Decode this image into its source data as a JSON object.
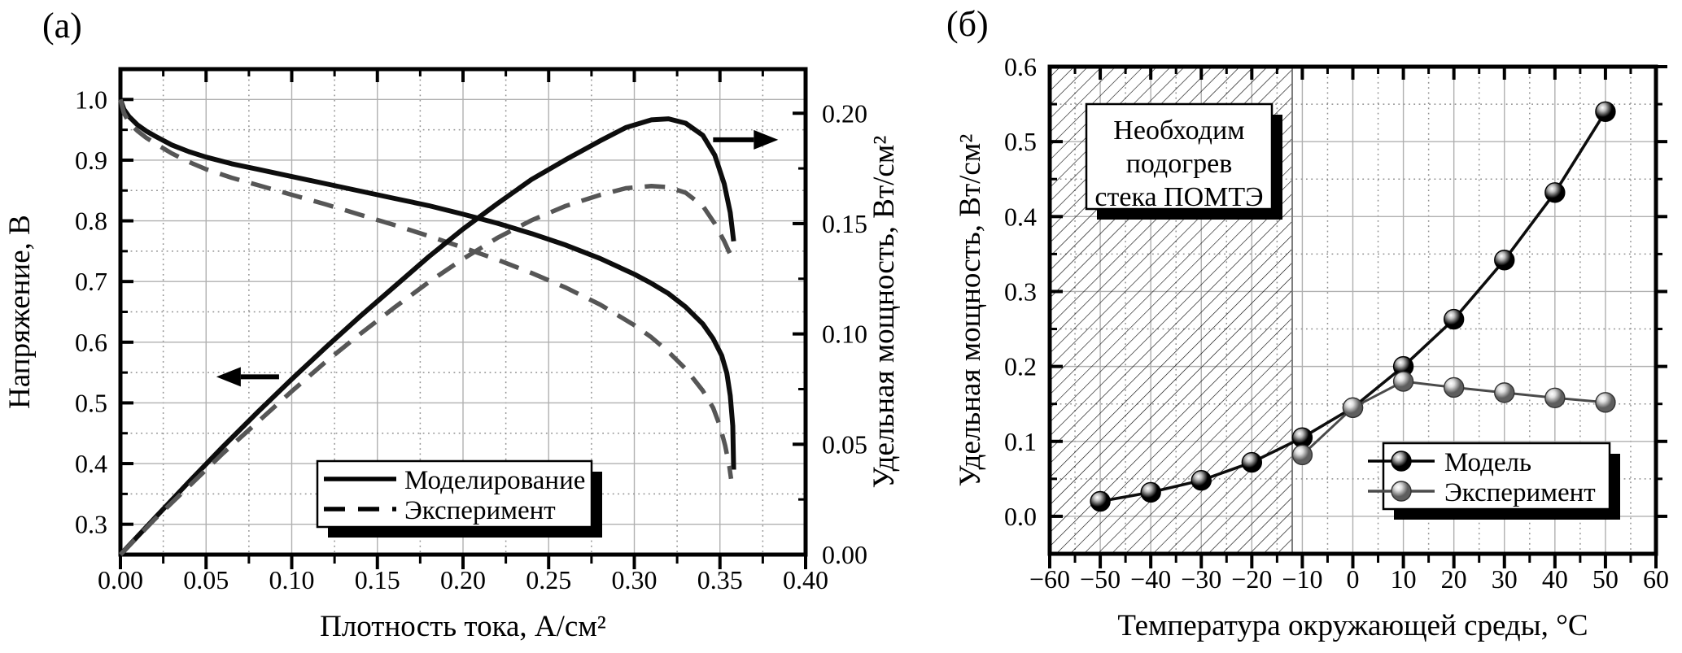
{
  "figure": {
    "background": "#ffffff",
    "colors": {
      "model": "#0d0d0d",
      "experiment": "#565656",
      "grid_major": "#b0b0b0",
      "grid_minor": "#8f8f8f",
      "axis": "#000000",
      "box_fill": "#ffffff",
      "box_shadow": "#000000",
      "hatch_line": "#000000"
    }
  },
  "chart_data": [
    {
      "id": "a",
      "tag": "(а)",
      "type": "line",
      "x_axis": {
        "title": "Плотность тока, А/см²",
        "min": 0,
        "max": 0.4,
        "majors": [
          0,
          0.05,
          0.1,
          0.15,
          0.2,
          0.25,
          0.3,
          0.35,
          0.4
        ],
        "labels": [
          "0.00",
          "0.05",
          "0.10",
          "0.15",
          "0.20",
          "0.25",
          "0.30",
          "0.35",
          "0.40"
        ],
        "minor_step": 0.025,
        "grid": true
      },
      "y_left": {
        "title": "Напряжение, В",
        "min": 0.25,
        "max": 1.05,
        "majors": [
          1.0,
          0.9,
          0.8,
          0.7,
          0.6,
          0.5,
          0.4,
          0.3
        ],
        "labels": [
          "1.0",
          "0.9",
          "0.8",
          "0.7",
          "0.6",
          "0.5",
          "0.4",
          "0.3"
        ],
        "minor_step": 0.05,
        "grid": true
      },
      "y_right": {
        "title": "Удельная мощность, Вт/см²",
        "min": 0,
        "max": 0.22,
        "majors": [
          0.2,
          0.15,
          0.1,
          0.05,
          0
        ],
        "labels": [
          "0.20",
          "0.15",
          "0.10",
          "0.05",
          "0.00"
        ],
        "minor_step": 0.025,
        "grid": false
      },
      "series": [
        {
          "name": "Моделирование",
          "quantity": "voltage",
          "axis": "left",
          "style": "solid",
          "color": "#0d0d0d",
          "points": [
            [
              0,
              1.0
            ],
            [
              0.002,
              0.984
            ],
            [
              0.005,
              0.972
            ],
            [
              0.01,
              0.958
            ],
            [
              0.015,
              0.948
            ],
            [
              0.02,
              0.94
            ],
            [
              0.03,
              0.925
            ],
            [
              0.04,
              0.914
            ],
            [
              0.05,
              0.905
            ],
            [
              0.065,
              0.894
            ],
            [
              0.08,
              0.885
            ],
            [
              0.1,
              0.873
            ],
            [
              0.12,
              0.861
            ],
            [
              0.14,
              0.849
            ],
            [
              0.16,
              0.837
            ],
            [
              0.18,
              0.825
            ],
            [
              0.2,
              0.811
            ],
            [
              0.22,
              0.796
            ],
            [
              0.24,
              0.779
            ],
            [
              0.26,
              0.76
            ],
            [
              0.28,
              0.738
            ],
            [
              0.3,
              0.712
            ],
            [
              0.31,
              0.697
            ],
            [
              0.32,
              0.68
            ],
            [
              0.33,
              0.658
            ],
            [
              0.34,
              0.63
            ],
            [
              0.346,
              0.606
            ],
            [
              0.351,
              0.578
            ],
            [
              0.354,
              0.549
            ],
            [
              0.356,
              0.512
            ],
            [
              0.3575,
              0.462
            ],
            [
              0.358,
              0.39
            ]
          ]
        },
        {
          "name": "Эксперимент",
          "quantity": "voltage",
          "axis": "left",
          "style": "dashed",
          "color": "#565656",
          "points": [
            [
              0,
              1.0
            ],
            [
              0.002,
              0.978
            ],
            [
              0.005,
              0.962
            ],
            [
              0.01,
              0.948
            ],
            [
              0.015,
              0.937
            ],
            [
              0.02,
              0.928
            ],
            [
              0.03,
              0.911
            ],
            [
              0.04,
              0.897
            ],
            [
              0.05,
              0.885
            ],
            [
              0.065,
              0.871
            ],
            [
              0.08,
              0.859
            ],
            [
              0.1,
              0.843
            ],
            [
              0.12,
              0.827
            ],
            [
              0.14,
              0.81
            ],
            [
              0.16,
              0.793
            ],
            [
              0.18,
              0.775
            ],
            [
              0.2,
              0.756
            ],
            [
              0.22,
              0.736
            ],
            [
              0.24,
              0.714
            ],
            [
              0.26,
              0.69
            ],
            [
              0.28,
              0.662
            ],
            [
              0.3,
              0.628
            ],
            [
              0.31,
              0.608
            ],
            [
              0.32,
              0.584
            ],
            [
              0.33,
              0.556
            ],
            [
              0.34,
              0.52
            ],
            [
              0.346,
              0.492
            ],
            [
              0.35,
              0.462
            ],
            [
              0.353,
              0.43
            ],
            [
              0.3555,
              0.395
            ],
            [
              0.3565,
              0.375
            ]
          ]
        },
        {
          "name": "Моделирование",
          "quantity": "power",
          "axis": "right",
          "style": "solid",
          "color": "#0d0d0d",
          "points": [
            [
              0,
              0
            ],
            [
              0.02,
              0.0165
            ],
            [
              0.04,
              0.033
            ],
            [
              0.06,
              0.049
            ],
            [
              0.08,
              0.0645
            ],
            [
              0.1,
              0.0795
            ],
            [
              0.12,
              0.094
            ],
            [
              0.14,
              0.108
            ],
            [
              0.16,
              0.1215
            ],
            [
              0.18,
              0.135
            ],
            [
              0.2,
              0.1475
            ],
            [
              0.22,
              0.159
            ],
            [
              0.24,
              0.17
            ],
            [
              0.26,
              0.179
            ],
            [
              0.28,
              0.1875
            ],
            [
              0.295,
              0.1935
            ],
            [
              0.31,
              0.197
            ],
            [
              0.32,
              0.1975
            ],
            [
              0.33,
              0.1955
            ],
            [
              0.34,
              0.19
            ],
            [
              0.347,
              0.181
            ],
            [
              0.3525,
              0.168
            ],
            [
              0.356,
              0.155
            ],
            [
              0.358,
              0.142
            ]
          ]
        },
        {
          "name": "Эксперимент",
          "quantity": "power",
          "axis": "right",
          "style": "dashed",
          "color": "#565656",
          "points": [
            [
              0,
              0
            ],
            [
              0.02,
              0.016
            ],
            [
              0.04,
              0.031
            ],
            [
              0.06,
              0.046
            ],
            [
              0.08,
              0.06
            ],
            [
              0.1,
              0.074
            ],
            [
              0.12,
              0.0875
            ],
            [
              0.14,
              0.1
            ],
            [
              0.16,
              0.112
            ],
            [
              0.18,
              0.1235
            ],
            [
              0.2,
              0.134
            ],
            [
              0.22,
              0.1435
            ],
            [
              0.24,
              0.1515
            ],
            [
              0.26,
              0.158
            ],
            [
              0.28,
              0.163
            ],
            [
              0.295,
              0.166
            ],
            [
              0.31,
              0.167
            ],
            [
              0.32,
              0.1665
            ],
            [
              0.33,
              0.164
            ],
            [
              0.34,
              0.158
            ],
            [
              0.347,
              0.15
            ],
            [
              0.3525,
              0.142
            ],
            [
              0.356,
              0.136
            ]
          ]
        }
      ],
      "legend": {
        "entries": [
          {
            "label": "Моделирование",
            "style": "solid"
          },
          {
            "label": "Эксперимент",
            "style": "dashed"
          }
        ]
      },
      "arrows": [
        {
          "points_to": "left-axis",
          "axis": "left",
          "tail": [
            0.0926,
            0.543
          ],
          "head": [
            0.056,
            0.543
          ]
        },
        {
          "points_to": "right-axis",
          "axis": "right",
          "tail": [
            0.346,
            0.188
          ],
          "head": [
            0.384,
            0.188
          ]
        }
      ]
    },
    {
      "id": "b",
      "tag": "(б)",
      "type": "scatter-line",
      "x_axis": {
        "title": "Температура окружающей среды, °С",
        "min": -60,
        "max": 60,
        "majors": [
          -60,
          -50,
          -40,
          -30,
          -20,
          -10,
          0,
          10,
          20,
          30,
          40,
          50,
          60
        ],
        "labels": [
          "−60",
          "−50",
          "−40",
          "−30",
          "−20",
          "−10",
          "0",
          "10",
          "20",
          "30",
          "40",
          "50",
          "60"
        ],
        "minor_step": 5,
        "grid": true
      },
      "y_left": {
        "title": "Удельная мощность, Вт/см²",
        "min": -0.05,
        "max": 0.6,
        "majors": [
          0.6,
          0.5,
          0.4,
          0.3,
          0.2,
          0.1,
          0.0
        ],
        "labels": [
          "0.6",
          "0.5",
          "0.4",
          "0.3",
          "0.2",
          "0.1",
          "0.0"
        ],
        "minor_step": 0.05,
        "grid": true
      },
      "hatch_region": {
        "x_from": -60,
        "x_to": -12,
        "annotation_lines": [
          "Необходим",
          "подогрев",
          "стека ПОМТЭ"
        ]
      },
      "series": [
        {
          "name": "Модель",
          "marker": "sphere-black",
          "color": "#000000",
          "line_color": "#0d0d0d",
          "points": [
            [
              -50,
              0.02
            ],
            [
              -40,
              0.032
            ],
            [
              -30,
              0.048
            ],
            [
              -20,
              0.072
            ],
            [
              -10,
              0.105
            ],
            [
              0,
              0.145
            ],
            [
              10,
              0.2
            ],
            [
              20,
              0.263
            ],
            [
              30,
              0.342
            ],
            [
              40,
              0.432
            ],
            [
              50,
              0.54
            ]
          ]
        },
        {
          "name": "Эксперимент",
          "marker": "sphere-gray",
          "color": "#565656",
          "line_color": "#4a4a4a",
          "points": [
            [
              -10,
              0.082
            ],
            [
              0,
              0.145
            ],
            [
              10,
              0.18
            ],
            [
              20,
              0.172
            ],
            [
              30,
              0.165
            ],
            [
              40,
              0.158
            ],
            [
              50,
              0.152
            ]
          ]
        }
      ],
      "legend": {
        "entries": [
          {
            "label": "Модель",
            "marker": "sphere-black"
          },
          {
            "label": "Эксперимент",
            "marker": "sphere-gray"
          }
        ]
      }
    }
  ]
}
